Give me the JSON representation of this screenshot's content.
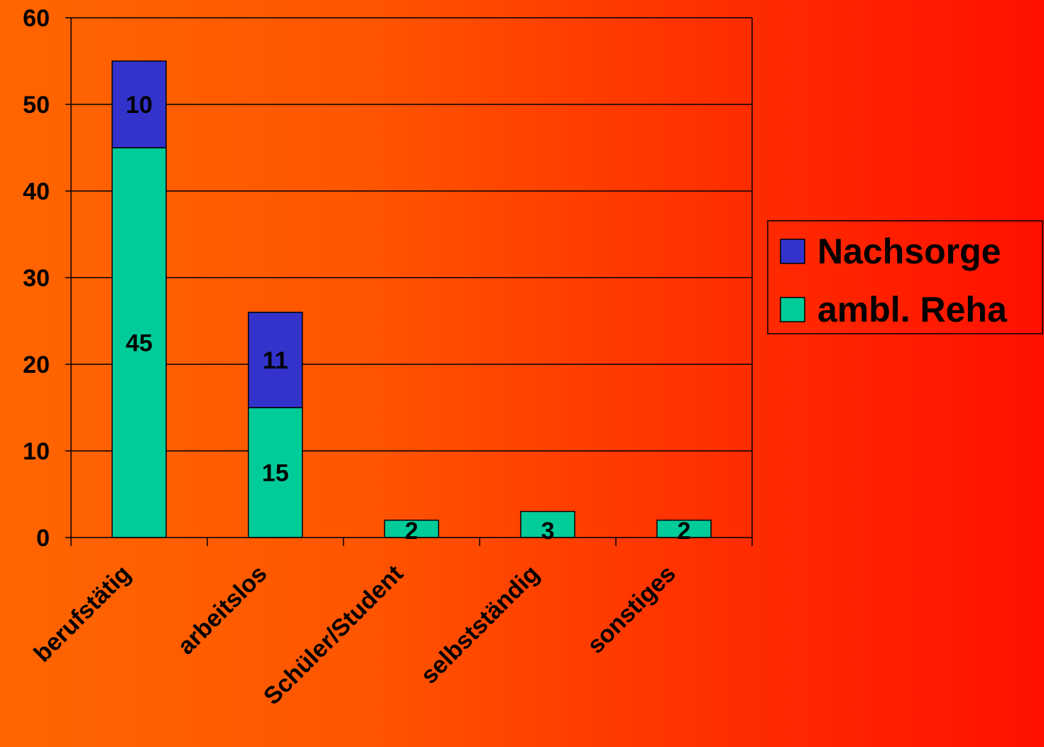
{
  "chart_data": {
    "type": "bar",
    "stacked": true,
    "categories": [
      "berufstätig",
      "arbeitslos",
      "Schüler/Student",
      "selbstständig",
      "sonstiges"
    ],
    "series": [
      {
        "name": "ambl. Reha",
        "values": [
          45,
          15,
          2,
          3,
          2
        ],
        "color": "#00cc99"
      },
      {
        "name": "Nachsorge",
        "values": [
          10,
          11,
          0,
          0,
          0
        ],
        "color": "#3333cc"
      }
    ],
    "data_labels": [
      {
        "series": 0,
        "values": [
          "45",
          "15",
          "2",
          "3",
          "2"
        ]
      },
      {
        "series": 1,
        "values": [
          "10",
          "11",
          "",
          "",
          ""
        ]
      }
    ],
    "y_ticks": [
      "0",
      "10",
      "20",
      "30",
      "40",
      "50",
      "60"
    ],
    "ylim": [
      0,
      60
    ],
    "grid": true,
    "legend_position": "right",
    "legend_order": [
      "Nachsorge",
      "ambl. Reha"
    ]
  }
}
